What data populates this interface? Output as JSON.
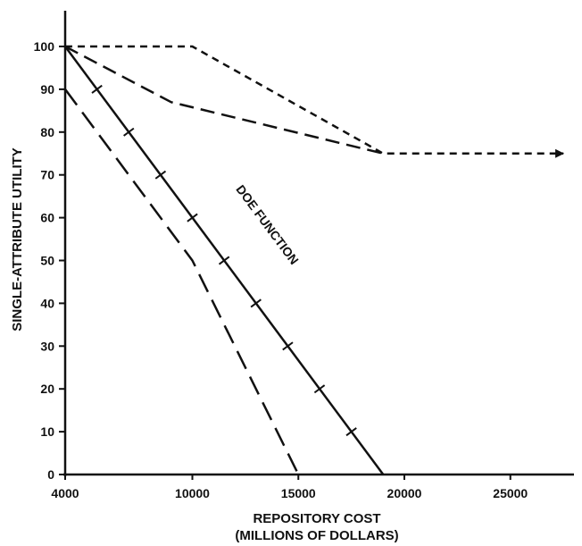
{
  "chart_data": {
    "type": "line",
    "title": "",
    "xlabel": "REPOSITORY COST",
    "xlabel_line2": "(MILLIONS OF DOLLARS)",
    "ylabel": "SINGLE-ATTRIBUTE UTILITY",
    "xlim": [
      4000,
      28000
    ],
    "ylim": [
      0,
      100
    ],
    "x_ticks": [
      4000,
      10000,
      15000,
      20000,
      25000
    ],
    "x_tick_labels": [
      "4000",
      "10000",
      "15000",
      "20000",
      "25000"
    ],
    "y_ticks": [
      0,
      10,
      20,
      30,
      40,
      50,
      60,
      70,
      80,
      90,
      100
    ],
    "y_tick_labels": [
      "0",
      "10",
      "20",
      "30",
      "40",
      "50",
      "60",
      "70",
      "80",
      "90",
      "100"
    ],
    "grid": false,
    "legend": "none",
    "series": [
      {
        "label": "DOE FUNCTION",
        "style": "solid-with-crossmarks",
        "x": [
          4000,
          19000
        ],
        "y": [
          100,
          0
        ],
        "marker_x": [
          5500,
          7000,
          8500,
          10000,
          11500,
          13000,
          14500,
          16000,
          17500
        ],
        "marker_y": [
          90,
          80,
          70,
          60,
          50,
          40,
          30,
          20,
          10
        ]
      },
      {
        "style": "long-dash",
        "x": [
          4000,
          10000,
          15000
        ],
        "y": [
          90,
          50,
          0
        ]
      },
      {
        "style": "medium-dash",
        "x": [
          4000,
          9000,
          19000
        ],
        "y": [
          100,
          87,
          75
        ]
      },
      {
        "style": "short-dash-arrow",
        "x": [
          4000,
          10000,
          19000,
          27500
        ],
        "y": [
          100,
          100,
          75,
          75
        ]
      }
    ],
    "colors": {
      "ink": "#111111",
      "background": "#ffffff"
    }
  }
}
